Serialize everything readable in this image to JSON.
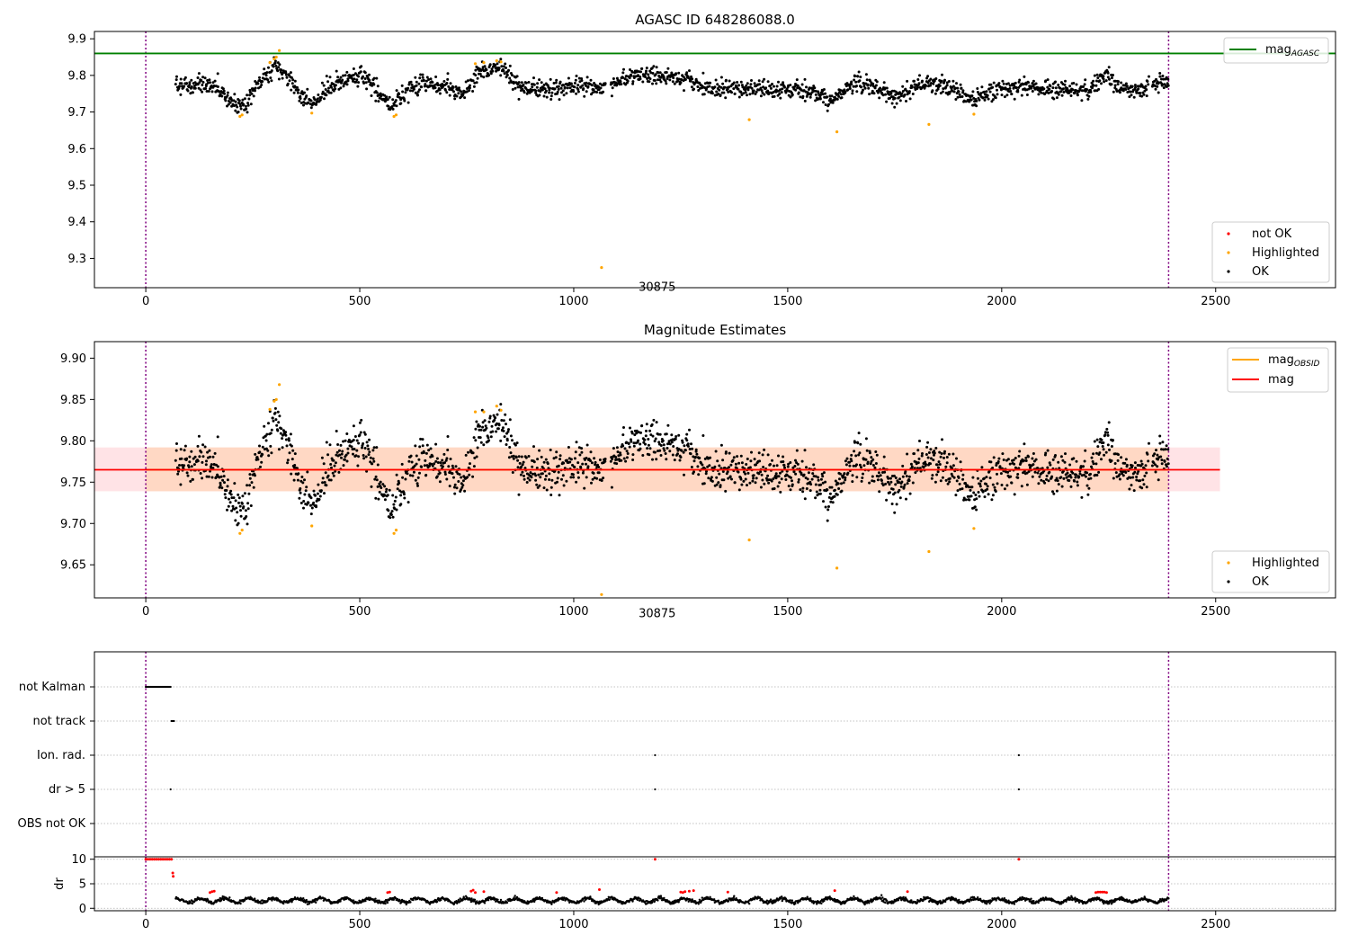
{
  "chart_data": [
    {
      "type": "scatter",
      "title": "AGASC ID 648286088.0",
      "xlim": [
        -120,
        2780
      ],
      "ylim": [
        9.22,
        9.92
      ],
      "xticks": [
        0,
        500,
        1000,
        1500,
        2000,
        2500
      ],
      "yticks": [
        9.3,
        9.4,
        9.5,
        9.6,
        9.7,
        9.8,
        9.9
      ],
      "ytick_decimals": 1,
      "vlines": [
        0,
        2390
      ],
      "hline": {
        "label": "mag_AGASC",
        "value": 9.86,
        "color": "#008000",
        "x_range": [
          -120,
          2780
        ]
      },
      "annotation": {
        "text": "30875",
        "x": 1195,
        "y": 9.27
      },
      "series": [
        {
          "name": "not OK",
          "color": "#ff0000",
          "values": []
        },
        {
          "name": "Highlighted",
          "color": "#ffa500",
          "points": [
            [
              220,
              9.688
            ],
            [
              225,
              9.692
            ],
            [
              290,
              9.835
            ],
            [
              300,
              9.845
            ],
            [
              305,
              9.85
            ],
            [
              312,
              9.868
            ],
            [
              388,
              9.697
            ],
            [
              580,
              9.688
            ],
            [
              585,
              9.692
            ],
            [
              770,
              9.832
            ],
            [
              790,
              9.835
            ],
            [
              820,
              9.84
            ],
            [
              830,
              9.837
            ],
            [
              1065,
              9.275
            ],
            [
              1410,
              9.679
            ],
            [
              1615,
              9.646
            ],
            [
              1830,
              9.666
            ],
            [
              1935,
              9.694
            ]
          ]
        },
        {
          "name": "OK",
          "color": "#000000",
          "trend": [
            [
              70,
              9.77
            ],
            [
              150,
              9.775
            ],
            [
              180,
              9.75
            ],
            [
              215,
              9.72
            ],
            [
              240,
              9.725
            ],
            [
              265,
              9.78
            ],
            [
              300,
              9.825
            ],
            [
              330,
              9.8
            ],
            [
              360,
              9.75
            ],
            [
              390,
              9.72
            ],
            [
              430,
              9.77
            ],
            [
              470,
              9.79
            ],
            [
              500,
              9.8
            ],
            [
              530,
              9.77
            ],
            [
              560,
              9.73
            ],
            [
              580,
              9.72
            ],
            [
              610,
              9.76
            ],
            [
              650,
              9.78
            ],
            [
              700,
              9.77
            ],
            [
              740,
              9.755
            ],
            [
              780,
              9.81
            ],
            [
              830,
              9.825
            ],
            [
              870,
              9.77
            ],
            [
              920,
              9.76
            ],
            [
              980,
              9.77
            ],
            [
              1030,
              9.77
            ],
            [
              1065,
              9.765
            ],
            [
              1110,
              9.79
            ],
            [
              1160,
              9.8
            ],
            [
              1220,
              9.8
            ],
            [
              1270,
              9.79
            ],
            [
              1310,
              9.765
            ],
            [
              1380,
              9.765
            ],
            [
              1450,
              9.76
            ],
            [
              1520,
              9.76
            ],
            [
              1570,
              9.75
            ],
            [
              1600,
              9.73
            ],
            [
              1650,
              9.78
            ],
            [
              1700,
              9.77
            ],
            [
              1750,
              9.74
            ],
            [
              1810,
              9.775
            ],
            [
              1870,
              9.775
            ],
            [
              1930,
              9.73
            ],
            [
              1980,
              9.76
            ],
            [
              2040,
              9.77
            ],
            [
              2100,
              9.765
            ],
            [
              2170,
              9.76
            ],
            [
              2200,
              9.755
            ],
            [
              2240,
              9.8
            ],
            [
              2280,
              9.76
            ],
            [
              2320,
              9.755
            ],
            [
              2360,
              9.78
            ],
            [
              2390,
              9.78
            ]
          ],
          "gaps": [
            [
              1075,
              1085
            ],
            [
              2345,
              2352
            ]
          ],
          "spread": 0.012,
          "count": 1900,
          "seed": 7
        }
      ],
      "legends": [
        {
          "position": "upper right",
          "entries": [
            {
              "label": "mag",
              "sub": "AGASC",
              "type": "line",
              "color": "#008000"
            }
          ]
        },
        {
          "position": "lower right",
          "entries": [
            {
              "label": "not OK",
              "type": "dot",
              "color": "#ff0000"
            },
            {
              "label": "Highlighted",
              "type": "dot",
              "color": "#ffa500"
            },
            {
              "label": "OK",
              "type": "dot",
              "color": "#000000"
            }
          ]
        }
      ]
    },
    {
      "type": "scatter",
      "title": "Magnitude Estimates",
      "xlim": [
        -120,
        2780
      ],
      "ylim": [
        9.61,
        9.92
      ],
      "xticks": [
        0,
        500,
        1000,
        1500,
        2000,
        2500
      ],
      "yticks": [
        9.65,
        9.7,
        9.75,
        9.8,
        9.85,
        9.9
      ],
      "ytick_decimals": 2,
      "vlines": [
        0,
        2390
      ],
      "bands": [
        {
          "x_range": [
            -120,
            2510
          ],
          "y_range": [
            9.739,
            9.792
          ],
          "color": "#ffe3e6"
        },
        {
          "x_range": [
            0,
            2390
          ],
          "y_range": [
            9.739,
            9.792
          ],
          "color": "#ffd8c4"
        }
      ],
      "lines": [
        {
          "label": "mag_OBSID",
          "points": [
            [
              0,
              9.765
            ],
            [
              2390,
              9.765
            ]
          ],
          "color": "#ffa500"
        },
        {
          "label": "mag",
          "points": [
            [
              -120,
              9.765
            ],
            [
              2510,
              9.765
            ]
          ],
          "color": "#ff0000"
        }
      ],
      "annotation": {
        "text": "30875",
        "x": 1195,
        "y": 9.617
      },
      "series": [
        {
          "name": "Highlighted",
          "color": "#ffa500",
          "points": [
            [
              220,
              9.688
            ],
            [
              225,
              9.692
            ],
            [
              290,
              9.838
            ],
            [
              300,
              9.848
            ],
            [
              305,
              9.85
            ],
            [
              312,
              9.868
            ],
            [
              388,
              9.697
            ],
            [
              580,
              9.688
            ],
            [
              585,
              9.692
            ],
            [
              770,
              9.835
            ],
            [
              790,
              9.835
            ],
            [
              820,
              9.842
            ],
            [
              830,
              9.837
            ],
            [
              1065,
              9.614
            ],
            [
              1410,
              9.68
            ],
            [
              1615,
              9.646
            ],
            [
              1830,
              9.666
            ],
            [
              1935,
              9.694
            ]
          ]
        },
        {
          "name": "OK",
          "color": "#000000",
          "ref": "same-as-panel-1"
        }
      ],
      "legends": [
        {
          "position": "upper right",
          "entries": [
            {
              "label": "mag",
              "sub": "OBSID",
              "type": "line",
              "color": "#ffa500"
            },
            {
              "label": "mag",
              "type": "line",
              "color": "#ff0000"
            }
          ]
        },
        {
          "position": "lower right",
          "entries": [
            {
              "label": "Highlighted",
              "type": "dot",
              "color": "#ffa500"
            },
            {
              "label": "OK",
              "type": "dot",
              "color": "#000000"
            }
          ]
        }
      ]
    },
    {
      "type": "scatter",
      "title": "",
      "xlim": [
        -120,
        2780
      ],
      "vlines": [
        0,
        2390
      ],
      "flag_categories": [
        "not Kalman",
        "not track",
        "Ion. rad.",
        "dr > 5",
        "OBS not OK"
      ],
      "flag_points": [
        {
          "category": "not Kalman",
          "x_range": [
            0,
            58
          ]
        },
        {
          "category": "not track",
          "x_range": [
            60,
            66
          ]
        },
        {
          "category": "Ion. rad.",
          "x": [
            1190,
            2040
          ]
        },
        {
          "category": "dr > 5",
          "x": [
            58,
            1190,
            2040
          ]
        }
      ]
    },
    {
      "type": "scatter",
      "title": "",
      "xlim": [
        -120,
        2780
      ],
      "ylim": [
        -0.5,
        10.5
      ],
      "yticks": [
        0,
        5,
        10
      ],
      "ytick_decimals": 0,
      "ylabel": "dr",
      "xticks": [
        0,
        500,
        1000,
        1500,
        2000,
        2500
      ],
      "vlines": [
        0,
        2390
      ],
      "series": [
        {
          "name": "dr",
          "color": "#000000",
          "baseline": 1.6,
          "amplitude": 0.7,
          "count": 1900,
          "seed": 11
        },
        {
          "name": "dr not OK",
          "color": "#ff0000",
          "points": [
            [
              0,
              10
            ],
            [
              5,
              10
            ],
            [
              10,
              10
            ],
            [
              15,
              10
            ],
            [
              20,
              10
            ],
            [
              25,
              10
            ],
            [
              30,
              10
            ],
            [
              35,
              10
            ],
            [
              40,
              10
            ],
            [
              45,
              10
            ],
            [
              50,
              10
            ],
            [
              55,
              10
            ],
            [
              60,
              10
            ],
            [
              63,
              7.2
            ],
            [
              64,
              6.5
            ],
            [
              1190,
              10
            ],
            [
              2040,
              10
            ],
            [
              150,
              3.2
            ],
            [
              155,
              3.4
            ],
            [
              160,
              3.5
            ],
            [
              565,
              3.2
            ],
            [
              570,
              3.3
            ],
            [
              760,
              3.5
            ],
            [
              765,
              3.7
            ],
            [
              770,
              3.2
            ],
            [
              790,
              3.4
            ],
            [
              960,
              3.2
            ],
            [
              1060,
              3.8
            ],
            [
              1250,
              3.3
            ],
            [
              1255,
              3.2
            ],
            [
              1260,
              3.4
            ],
            [
              1270,
              3.5
            ],
            [
              1280,
              3.6
            ],
            [
              1360,
              3.3
            ],
            [
              1610,
              3.6
            ],
            [
              1780,
              3.4
            ],
            [
              2220,
              3.2
            ],
            [
              2225,
              3.3
            ],
            [
              2230,
              3.3
            ],
            [
              2235,
              3.3
            ],
            [
              2240,
              3.3
            ],
            [
              2245,
              3.2
            ]
          ]
        }
      ]
    }
  ]
}
